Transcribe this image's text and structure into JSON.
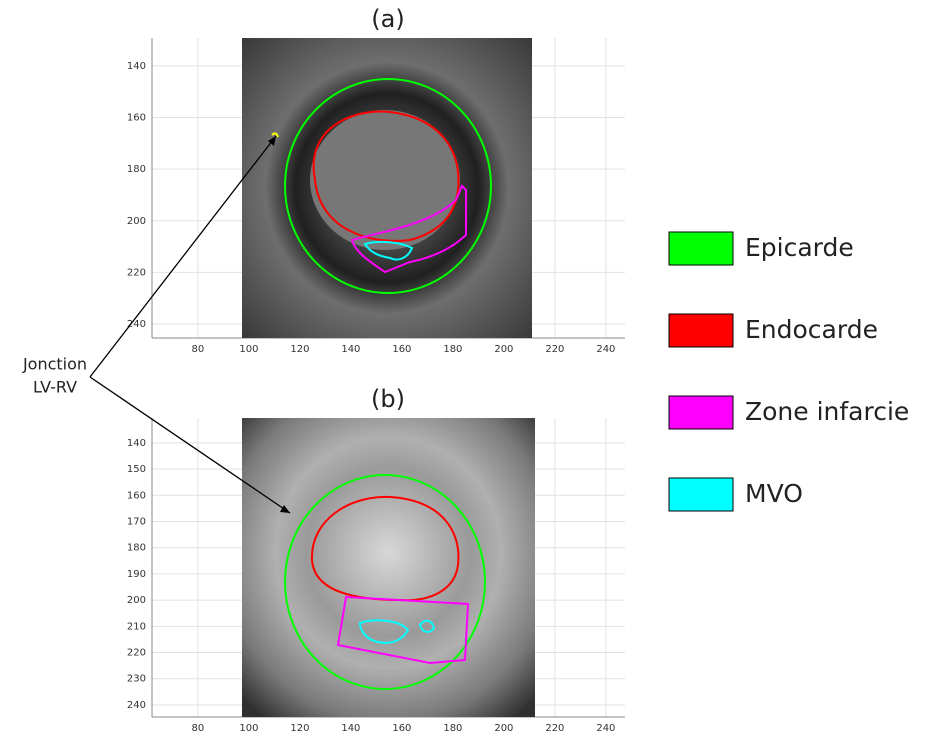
{
  "panels": [
    {
      "title": "(a)",
      "xlim": [
        62,
        247.5
      ],
      "ylim": [
        129.2,
        245.4
      ],
      "xticks": [
        80,
        100,
        120,
        140,
        160,
        180,
        200,
        220,
        240
      ],
      "yticks": [
        140,
        160,
        180,
        200,
        220,
        240
      ]
    },
    {
      "title": "(b)",
      "xlim": [
        62,
        247.5
      ],
      "ylim": [
        130.5,
        244.6
      ],
      "xticks": [
        80,
        100,
        120,
        140,
        160,
        180,
        200,
        220,
        240
      ],
      "yticks": [
        140,
        150,
        160,
        170,
        180,
        190,
        200,
        210,
        220,
        230,
        240
      ]
    }
  ],
  "legend": [
    {
      "label": "Epicarde",
      "color": "#00ff00"
    },
    {
      "label": "Endocarde",
      "color": "#ff0000"
    },
    {
      "label": "Zone infarcie",
      "color": "#ff00ff"
    },
    {
      "label": "MVO",
      "color": "#00ffff"
    }
  ],
  "annotation": [
    "Jonction",
    "LV-RV"
  ]
}
